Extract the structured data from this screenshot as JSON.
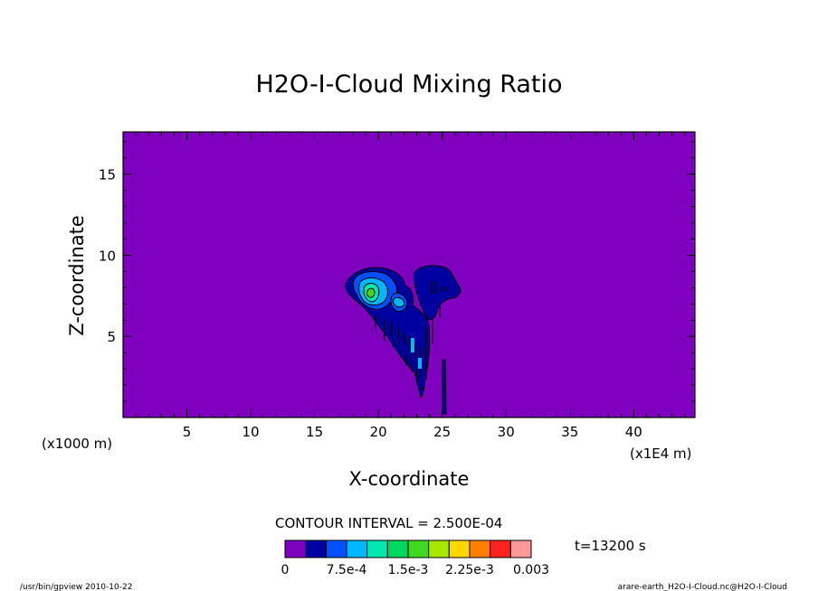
{
  "chart_data": {
    "type": "heatmap",
    "title": "H2O-I-Cloud Mixing Ratio",
    "xlabel": "X-coordinate",
    "ylabel": "Z-coordinate",
    "x_unit_left": "(x1000 m)",
    "x_unit_right": "(x1E4 m)",
    "xlim": [
      0,
      44.8
    ],
    "ylim": [
      0,
      17.6
    ],
    "x_ticks": [
      5,
      10,
      15,
      20,
      25,
      30,
      35,
      40
    ],
    "y_ticks": [
      5,
      10,
      15
    ],
    "contour_interval_text": "CONTOUR INTERVAL = 2.500E-04",
    "time_text": "t=13200 s",
    "colorbar": {
      "colors": [
        "#8000c0",
        "#0000a0",
        "#0050ff",
        "#00b8ff",
        "#00e8b0",
        "#00d860",
        "#40d820",
        "#a8e800",
        "#ffd800",
        "#ff8000",
        "#ff2020",
        "#ff9898"
      ],
      "tick_labels": [
        "0",
        "7.5e-4",
        "1.5e-3",
        "2.25e-3",
        "0.003"
      ],
      "tick_values": [
        0,
        0.00075,
        0.0015,
        0.00225,
        0.003
      ]
    },
    "cloud_region": {
      "x_range": [
        17.5,
        26.5
      ],
      "z_range": [
        1.0,
        9.3
      ],
      "max_value_approx": 0.0015
    }
  },
  "footer": {
    "left": "/usr/bin/gpview  2010-10-22",
    "right": "arare-earth_H2O-I-Cloud.nc@H2O-I-Cloud"
  }
}
